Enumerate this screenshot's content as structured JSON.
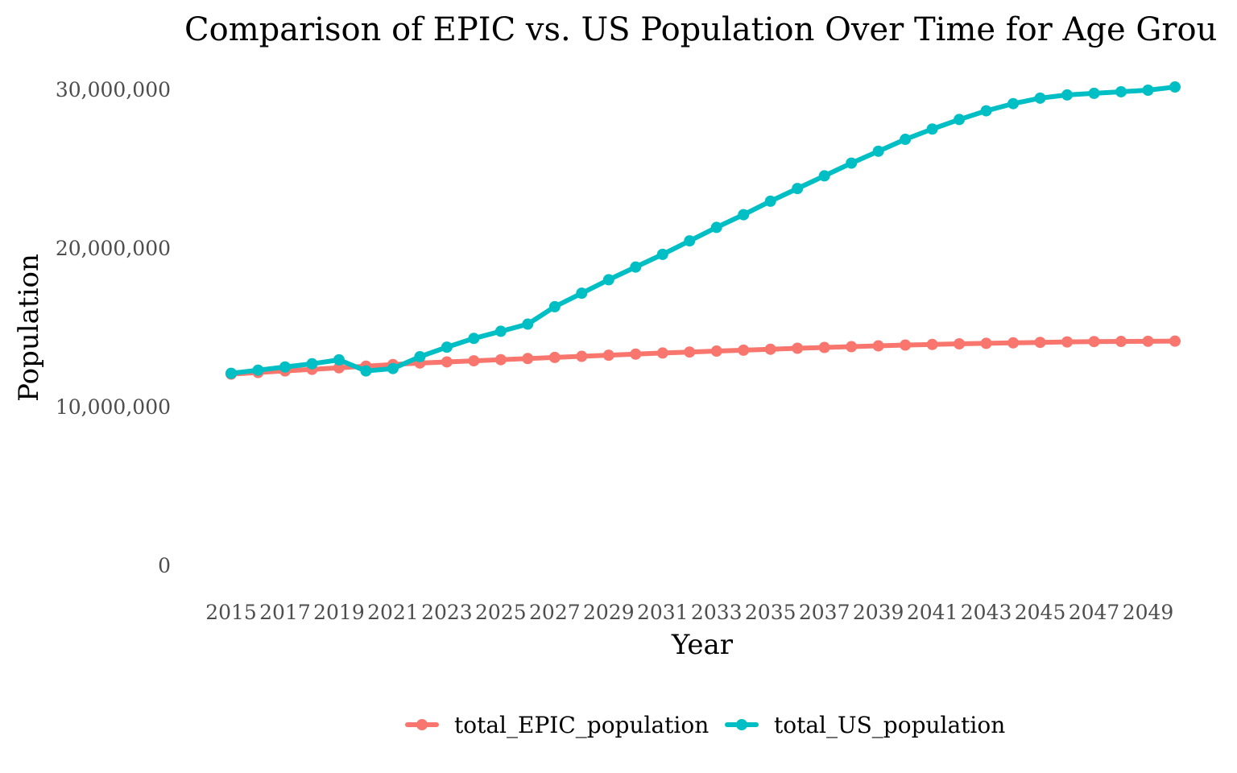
{
  "chart_data": {
    "type": "line",
    "title": "Comparison of EPIC vs. US Population Over Time for Age Grou",
    "xlabel": "Year",
    "ylabel": "Population",
    "x": [
      2015,
      2016,
      2017,
      2018,
      2019,
      2020,
      2021,
      2022,
      2023,
      2024,
      2025,
      2026,
      2027,
      2028,
      2029,
      2030,
      2031,
      2032,
      2033,
      2034,
      2035,
      2036,
      2037,
      2038,
      2039,
      2040,
      2041,
      2042,
      2043,
      2044,
      2045,
      2046,
      2047,
      2048,
      2049,
      2050
    ],
    "x_tick_labels": [
      "2015",
      "2017",
      "2019",
      "2021",
      "2023",
      "2025",
      "2027",
      "2029",
      "2031",
      "2033",
      "2035",
      "2037",
      "2039",
      "2041",
      "2043",
      "2045",
      "2047",
      "2049"
    ],
    "y_tick_labels": [
      "0",
      "10,000,000",
      "20,000,000",
      "30,000,000"
    ],
    "y_ticks": [
      0,
      10000000,
      20000000,
      30000000
    ],
    "ylim": [
      0,
      30000000
    ],
    "grid": false,
    "legend_position": "bottom",
    "series": [
      {
        "name": "total_EPIC_population",
        "color": "#F8766D",
        "values": [
          12050000,
          12150000,
          12250000,
          12350000,
          12450000,
          12550000,
          12650000,
          12750000,
          12820000,
          12890000,
          12960000,
          13030000,
          13100000,
          13170000,
          13240000,
          13310000,
          13380000,
          13440000,
          13500000,
          13560000,
          13620000,
          13680000,
          13730000,
          13780000,
          13830000,
          13880000,
          13920000,
          13960000,
          13990000,
          14020000,
          14050000,
          14080000,
          14100000,
          14110000,
          14120000,
          14130000
        ]
      },
      {
        "name": "total_US_population",
        "color": "#00BFC4",
        "values": [
          12100000,
          12300000,
          12500000,
          12700000,
          12950000,
          12250000,
          12400000,
          13150000,
          13750000,
          14300000,
          14750000,
          15200000,
          16300000,
          17150000,
          18000000,
          18800000,
          19600000,
          20450000,
          21300000,
          22100000,
          22950000,
          23750000,
          24550000,
          25350000,
          26100000,
          26850000,
          27500000,
          28100000,
          28650000,
          29100000,
          29450000,
          29650000,
          29750000,
          29850000,
          29950000,
          30150000
        ]
      }
    ]
  }
}
